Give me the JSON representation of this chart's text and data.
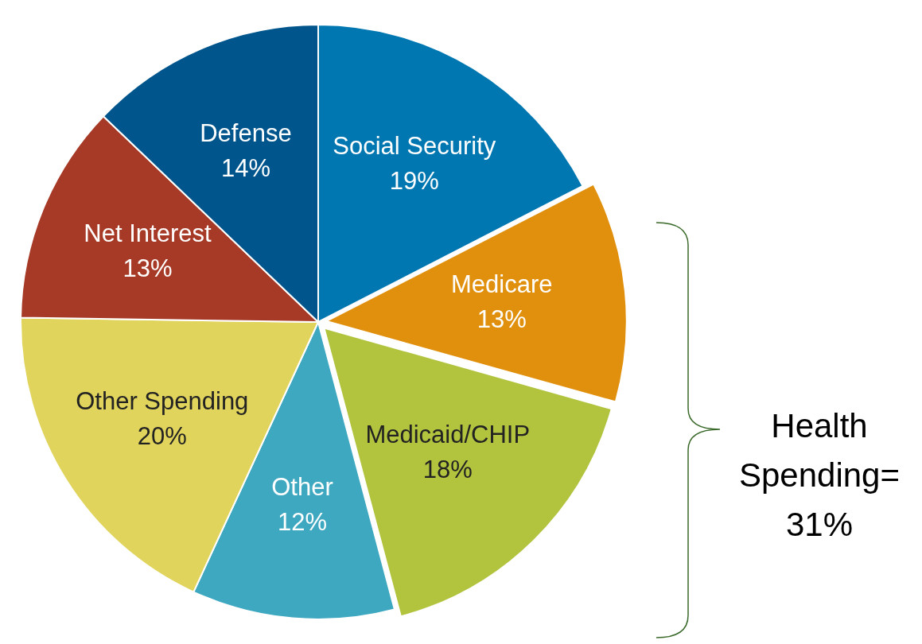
{
  "chart_data": {
    "type": "pie",
    "categories": [
      "Social Security",
      "Medicare",
      "Medicaid/CHIP",
      "Other",
      "Other Spending",
      "Net Interest",
      "Defense"
    ],
    "values": [
      19,
      13,
      18,
      12,
      20,
      13,
      14
    ],
    "value_labels": [
      "19%",
      "13%",
      "18%",
      "12%",
      "20%",
      "13%",
      "14%"
    ],
    "colors": [
      "#0077b0",
      "#e0900c",
      "#b2c33e",
      "#3ea8c0",
      "#e0d45c",
      "#a63a26",
      "#00568c"
    ],
    "annotations": [
      "Health Spending= 31%"
    ],
    "legend": false
  }
}
